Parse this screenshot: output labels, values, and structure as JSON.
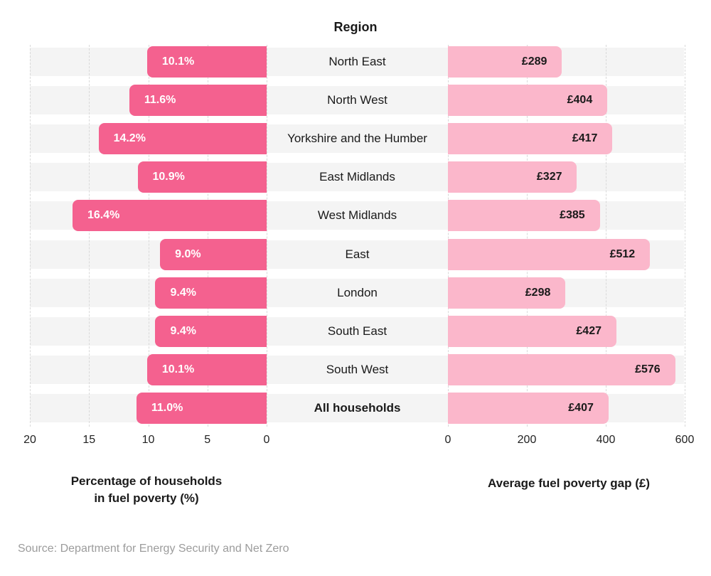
{
  "title": "Region",
  "source": "Source: Department for Energy Security and Net Zero",
  "colors": {
    "left_bar": "#f4618f",
    "right_bar": "#fbb7cb",
    "row_band": "#f4f4f4",
    "gridline": "#d9d9d9",
    "left_bar_text": "#ffffff",
    "right_bar_text": "#1a1a1a"
  },
  "chart_data": {
    "type": "bar",
    "subtype": "diverging-horizontal-butterfly",
    "title": "Region",
    "categories": [
      "North East",
      "North West",
      "Yorkshire and the Humber",
      "East Midlands",
      "West Midlands",
      "East",
      "London",
      "South East",
      "South West",
      "All households"
    ],
    "bold_category": "All households",
    "series": [
      {
        "name": "Percentage of households in fuel poverty (%)",
        "side": "left",
        "values": [
          10.1,
          11.6,
          14.2,
          10.9,
          16.4,
          9.0,
          9.4,
          9.4,
          10.1,
          11.0
        ],
        "labels": [
          "10.1%",
          "11.6%",
          "14.2%",
          "10.9%",
          "16.4%",
          "9.0%",
          "9.4%",
          "9.4%",
          "10.1%",
          "11.0%"
        ],
        "axis_ticks": [
          20,
          15,
          10,
          5,
          0
        ],
        "axis_range": [
          0,
          20
        ],
        "axis_direction": "reversed"
      },
      {
        "name": "Average fuel poverty gap (£)",
        "side": "right",
        "values": [
          289,
          404,
          417,
          327,
          385,
          512,
          298,
          427,
          576,
          407
        ],
        "labels": [
          "£289",
          "£404",
          "£417",
          "£327",
          "£385",
          "£512",
          "£298",
          "£427",
          "£576",
          "£407"
        ],
        "axis_ticks": [
          0,
          200,
          400,
          600
        ],
        "axis_range": [
          0,
          600
        ],
        "axis_direction": "normal"
      }
    ],
    "left_axis_label_line1": "Percentage of households",
    "left_axis_label_line2": "in fuel poverty (%)",
    "right_axis_label": "Average fuel poverty gap (£)",
    "grid": "dashed-vertical",
    "legend": "none"
  }
}
